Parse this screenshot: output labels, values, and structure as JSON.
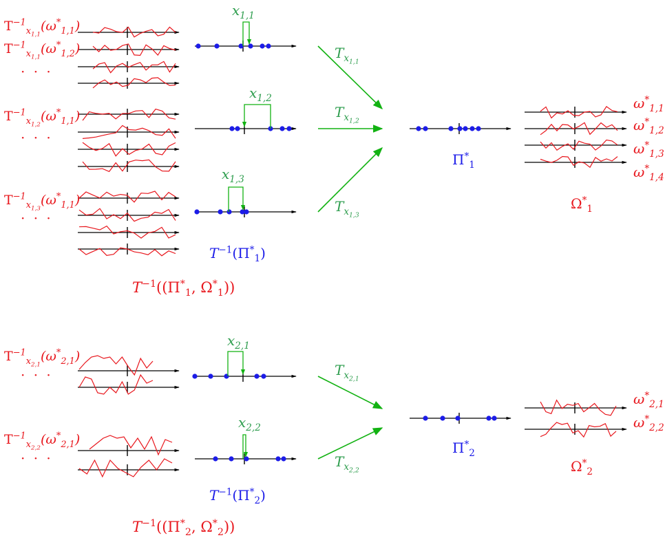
{
  "colors": {
    "red": "#e8171d",
    "blue": "#1c1ce8",
    "green": "#2e9d4e",
    "black": "#000000"
  },
  "ellipsis": "· · ·",
  "block1": {
    "bracket_labels": [
      "x1,1",
      "x1,2",
      "x1,3"
    ],
    "left_group_labels": [
      "T⁻¹x1,1(ω*1,1)",
      "T⁻¹x1,1(ω*1,2)",
      "T⁻¹x1,2(ω*1,1)",
      "T⁻¹x1,3(ω*1,1)"
    ],
    "arrow_labels": [
      "Tx1,1",
      "Tx1,2",
      "Tx1,3"
    ],
    "inverse_points_label": "T⁻¹(Π*1)",
    "inverse_total_label": "T⁻¹((Π*1, Ω*1))",
    "pi_label": "Π*1",
    "omega_label": "Ω*1",
    "right_signal_labels": [
      "ω*1,1",
      "ω*1,2",
      "ω*1,3",
      "ω*1,4"
    ]
  },
  "block2": {
    "bracket_labels": [
      "x2,1",
      "x2,2"
    ],
    "left_group_labels": [
      "T⁻¹x2,1(ω*2,1)",
      "T⁻¹x2,2(ω*2,1)"
    ],
    "arrow_labels": [
      "Tx2,1",
      "Tx2,2"
    ],
    "inverse_points_label": "T⁻¹(Π*2)",
    "inverse_total_label": "T⁻¹((Π*2, Ω*2))",
    "pi_label": "Π*2",
    "omega_label": "Ω*2",
    "right_signal_labels": [
      "ω*2,1",
      "ω*2,2"
    ]
  }
}
